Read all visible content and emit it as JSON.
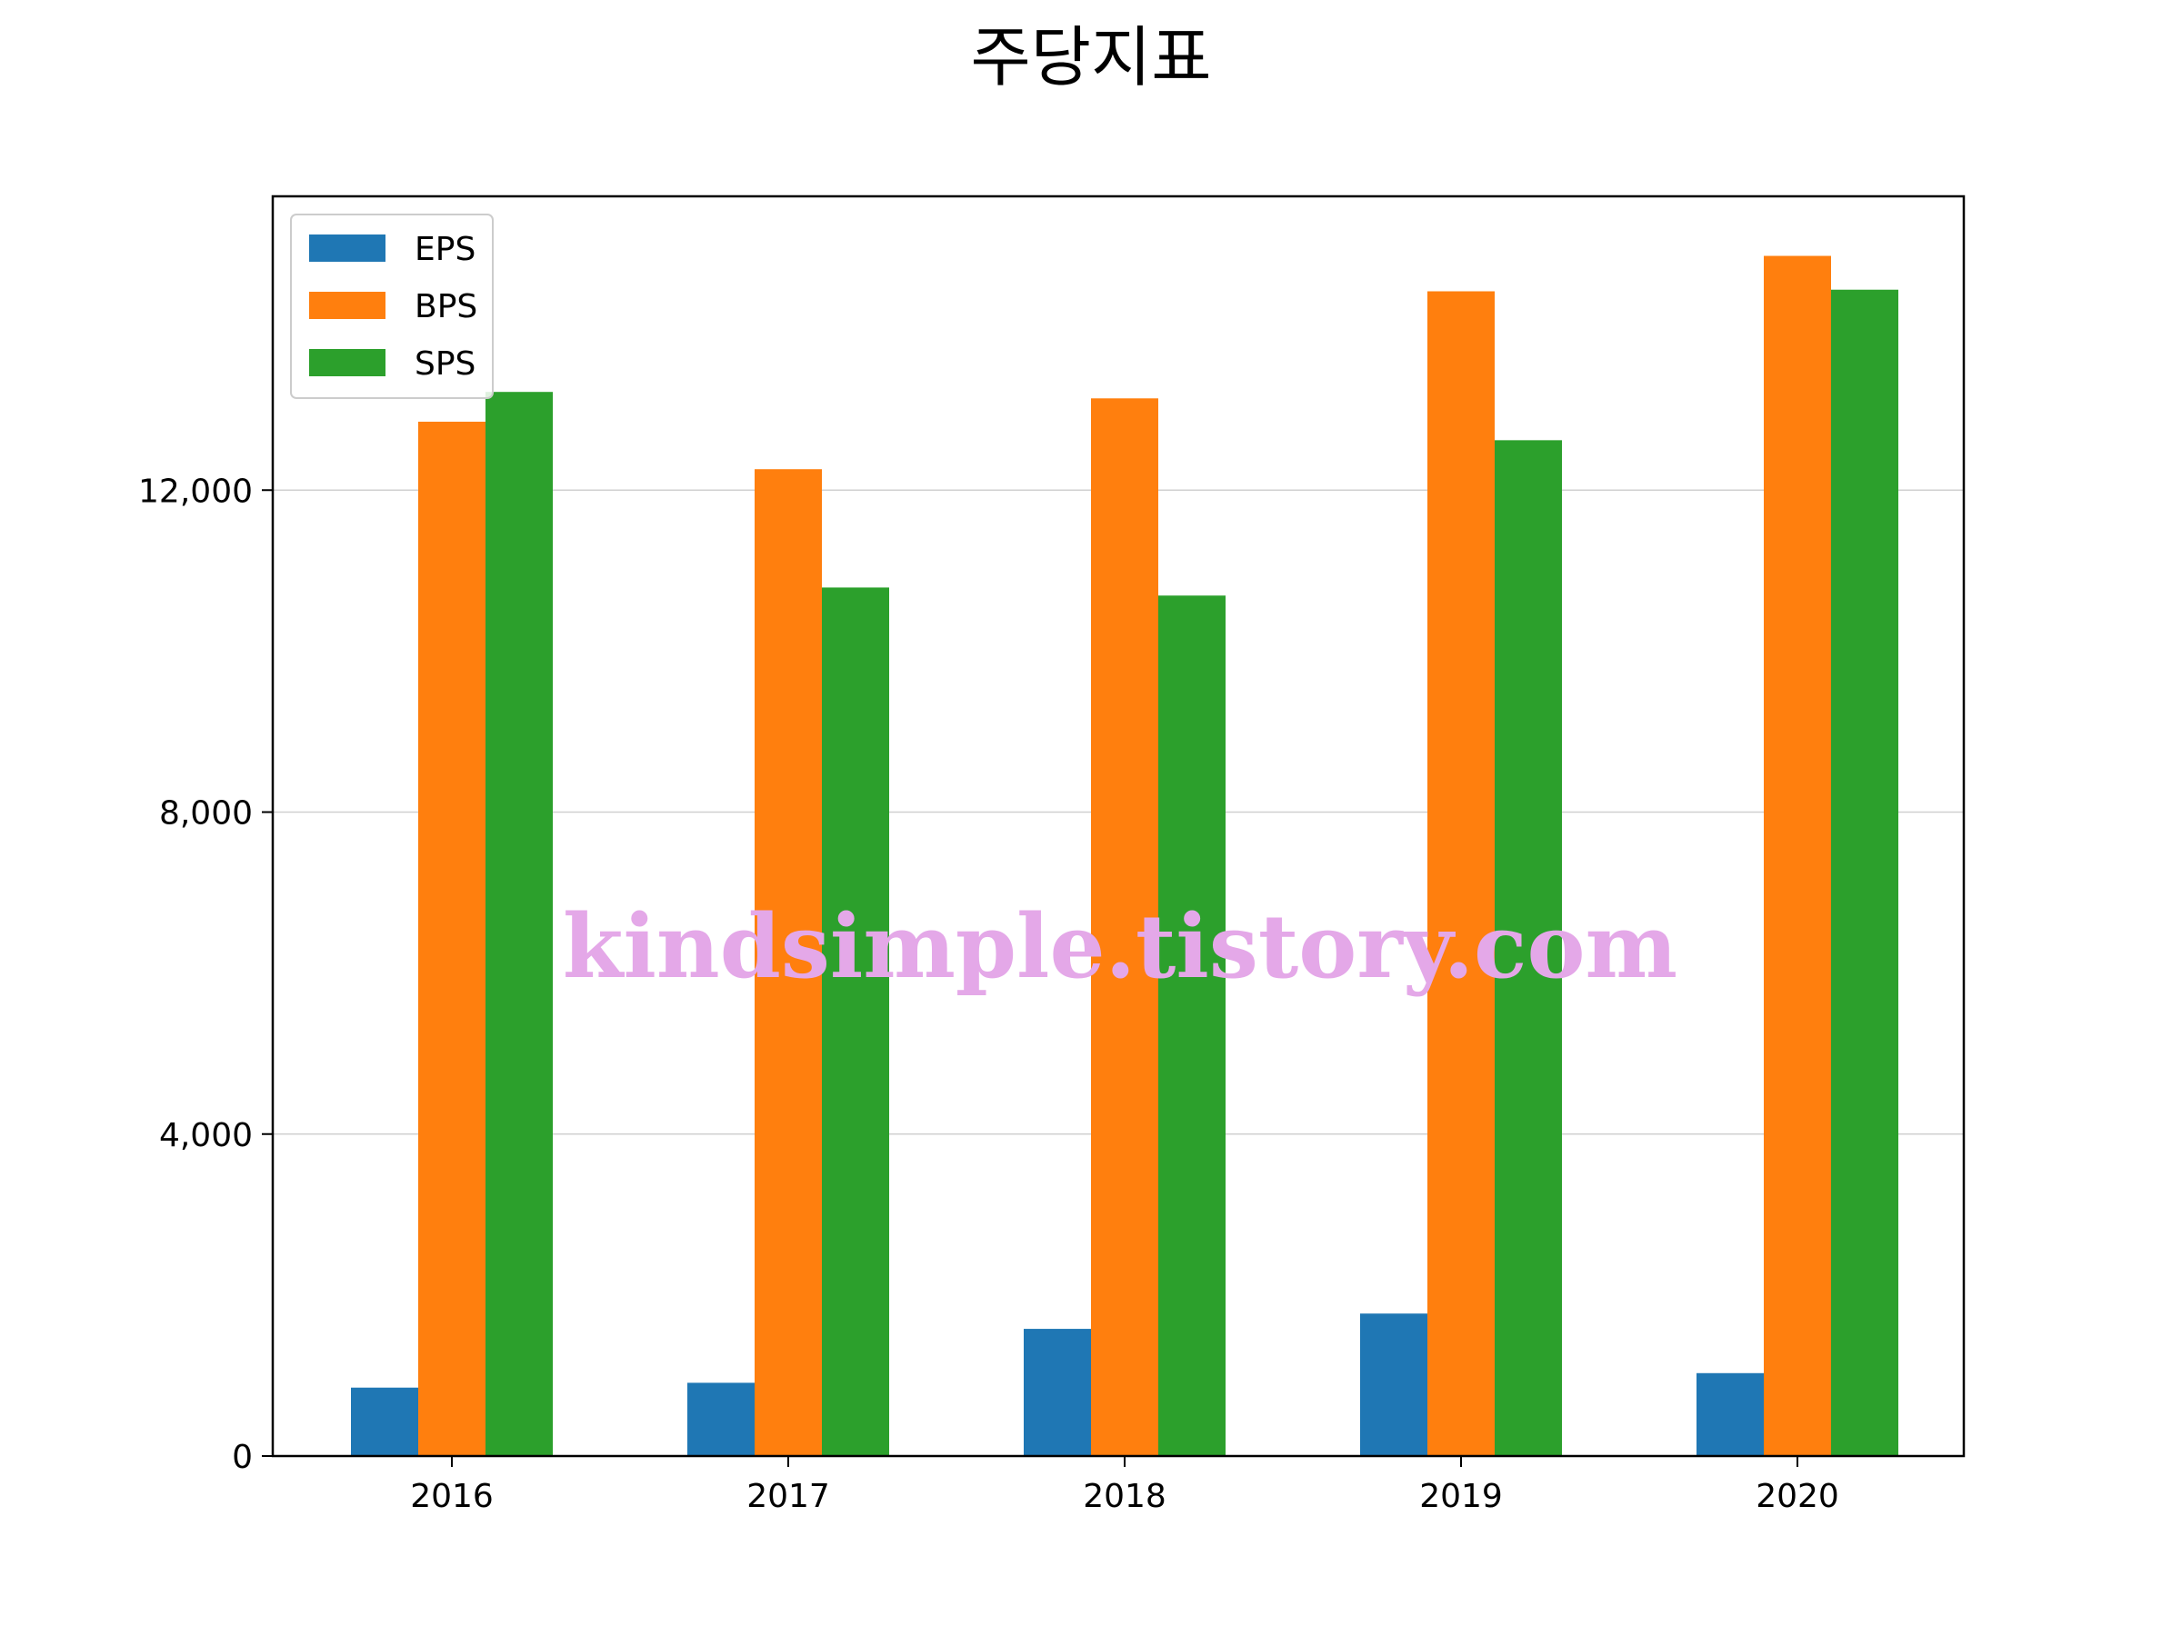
{
  "chart_data": {
    "type": "bar",
    "title": "주당지표",
    "xlabel": "",
    "ylabel": "",
    "categories": [
      "2016",
      "2017",
      "2018",
      "2019",
      "2020"
    ],
    "series": [
      {
        "name": "EPS",
        "color": "#1f77b4",
        "values": [
          850,
          910,
          1580,
          1770,
          1030
        ]
      },
      {
        "name": "BPS",
        "color": "#ff7f0e",
        "values": [
          12850,
          12260,
          13140,
          14470,
          14910
        ]
      },
      {
        "name": "SPS",
        "color": "#2ca02c",
        "values": [
          13220,
          10790,
          10690,
          12620,
          14490
        ]
      }
    ],
    "ylim": [
      0,
      15650
    ],
    "yticks": [
      0,
      4000,
      8000,
      12000
    ],
    "ytick_labels": [
      "0",
      "4,000",
      "8,000",
      "12,000"
    ],
    "grid": "horizontal",
    "legend_position": "top-left",
    "watermark": "kindsimple.tistory.com"
  }
}
